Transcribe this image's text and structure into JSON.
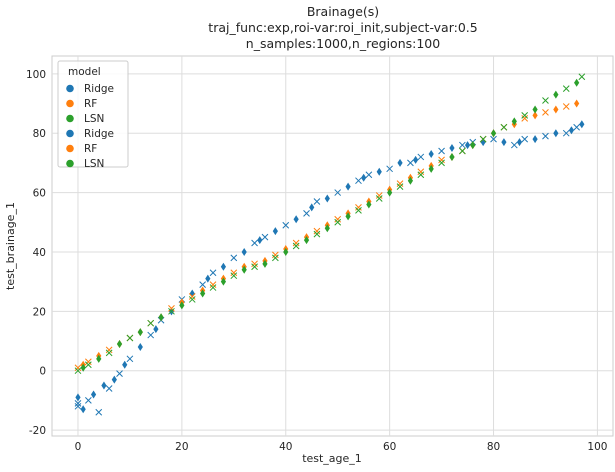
{
  "chart_data": {
    "type": "scatter",
    "title_lines": [
      "Brainage(s)",
      "traj_func:exp,roi-var:roi_init,subject-var:0.5",
      "n_samples:1000,n_regions:100"
    ],
    "xlabel": "test_age_1",
    "ylabel": "test_brainage_1",
    "xlim": [
      -5,
      103
    ],
    "ylim": [
      -22,
      106
    ],
    "xticks": [
      0,
      20,
      40,
      60,
      80,
      100
    ],
    "yticks": [
      -20,
      0,
      20,
      40,
      60,
      80,
      100
    ],
    "grid": true,
    "legend": {
      "title": "model",
      "placement": "top-left",
      "entries": [
        "Ridge",
        "RF",
        "LSN",
        "Ridge",
        "RF",
        "LSN"
      ]
    },
    "colors": {
      "Ridge": "#1f77b4",
      "RF": "#ff7f0e",
      "LSN": "#2ca02c"
    },
    "series": [
      {
        "name": "Ridge",
        "markers": [
          "x",
          "diamond"
        ],
        "color": "#1f77b4",
        "x": [
          0,
          0,
          0,
          1,
          2,
          3,
          4,
          5,
          6,
          7,
          8,
          9,
          10,
          12,
          14,
          15,
          16,
          18,
          20,
          22,
          24,
          25,
          26,
          28,
          30,
          32,
          34,
          35,
          36,
          38,
          40,
          42,
          44,
          45,
          46,
          48,
          50,
          52,
          54,
          55,
          56,
          58,
          60,
          62,
          64,
          65,
          66,
          68,
          70,
          72,
          74,
          75,
          76,
          78,
          80,
          82,
          84,
          85,
          86,
          88,
          90,
          92,
          94,
          95,
          96,
          97
        ],
        "y": [
          -12,
          -9,
          -11,
          -13,
          -10,
          -8,
          -14,
          -5,
          -6,
          -3,
          -1,
          2,
          4,
          8,
          12,
          14,
          17,
          20,
          24,
          26,
          29,
          31,
          33,
          35,
          38,
          40,
          43,
          44,
          45,
          47,
          49,
          51,
          53,
          55,
          57,
          58,
          60,
          62,
          64,
          65,
          66,
          67,
          68,
          70,
          70,
          71,
          72,
          73,
          74,
          75,
          76,
          76,
          77,
          77,
          78,
          77,
          76,
          77,
          78,
          78,
          79,
          80,
          80,
          81,
          82,
          83
        ]
      },
      {
        "name": "RF",
        "markers": [
          "x",
          "diamond"
        ],
        "color": "#ff7f0e",
        "x": [
          0,
          1,
          2,
          4,
          6,
          8,
          10,
          12,
          14,
          16,
          18,
          20,
          22,
          24,
          26,
          28,
          30,
          32,
          34,
          36,
          38,
          40,
          42,
          44,
          46,
          48,
          50,
          52,
          54,
          56,
          58,
          60,
          62,
          64,
          66,
          68,
          70,
          72,
          74,
          76,
          78,
          80,
          82,
          84,
          86,
          88,
          90,
          92,
          94,
          96
        ],
        "y": [
          1,
          2,
          3,
          5,
          7,
          9,
          11,
          13,
          16,
          18,
          21,
          23,
          25,
          27,
          29,
          31,
          33,
          35,
          36,
          37,
          39,
          41,
          43,
          45,
          47,
          49,
          51,
          53,
          55,
          57,
          59,
          61,
          63,
          65,
          67,
          69,
          71,
          72,
          74,
          76,
          78,
          80,
          82,
          83,
          85,
          86,
          87,
          88,
          89,
          90
        ]
      },
      {
        "name": "LSN",
        "markers": [
          "x",
          "diamond"
        ],
        "color": "#2ca02c",
        "x": [
          0,
          1,
          2,
          4,
          6,
          8,
          10,
          12,
          14,
          16,
          18,
          20,
          22,
          24,
          26,
          28,
          30,
          32,
          34,
          36,
          38,
          40,
          42,
          44,
          46,
          48,
          50,
          52,
          54,
          56,
          58,
          60,
          62,
          64,
          66,
          68,
          70,
          72,
          74,
          76,
          78,
          80,
          82,
          84,
          86,
          88,
          90,
          92,
          94,
          96,
          97
        ],
        "y": [
          0,
          1,
          2,
          4,
          6,
          9,
          11,
          13,
          16,
          18,
          20,
          22,
          24,
          26,
          28,
          30,
          32,
          34,
          35,
          36,
          38,
          40,
          42,
          44,
          46,
          48,
          50,
          52,
          54,
          56,
          58,
          60,
          62,
          64,
          66,
          68,
          70,
          72,
          74,
          76,
          78,
          80,
          82,
          84,
          86,
          88,
          91,
          93,
          95,
          97,
          99
        ]
      }
    ]
  }
}
